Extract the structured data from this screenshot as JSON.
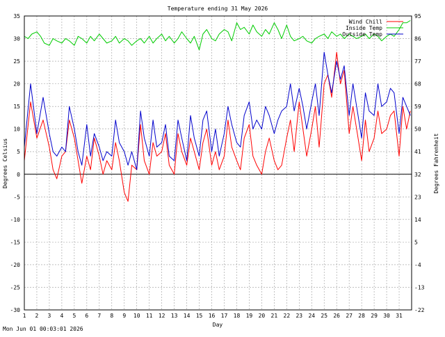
{
  "chart_data": {
    "type": "line",
    "title": "Temperature ending 31 May 2026",
    "xlabel": "Day",
    "ylabel_left": "Degrees Celsius",
    "ylabel_right": "Degrees Fahrenheit",
    "x_range": [
      1,
      32
    ],
    "ylim": [
      -30,
      35
    ],
    "y_ticks": [
      -30,
      -25,
      -20,
      -15,
      -10,
      -5,
      0,
      5,
      10,
      15,
      20,
      25,
      30,
      35
    ],
    "x_ticks": [
      1,
      2,
      3,
      4,
      5,
      6,
      7,
      8,
      9,
      10,
      11,
      12,
      13,
      14,
      15,
      16,
      17,
      18,
      19,
      20,
      21,
      22,
      23,
      24,
      25,
      26,
      27,
      28,
      29,
      30,
      31
    ],
    "y_right_ticks": [
      95,
      86,
      77,
      68,
      59,
      50,
      41,
      32,
      23,
      14,
      5,
      -4,
      -13,
      -22
    ],
    "grid": true,
    "legend_position": "top-right",
    "series": [
      {
        "name": "Wind Chill",
        "color": "#ff0000",
        "x": [
          1.0,
          1.5,
          2.0,
          2.5,
          3.0,
          3.3,
          3.6,
          4.0,
          4.3,
          4.6,
          5.0,
          5.3,
          5.6,
          6.0,
          6.3,
          6.6,
          7.0,
          7.3,
          7.6,
          8.0,
          8.3,
          8.6,
          9.0,
          9.3,
          9.6,
          10.0,
          10.3,
          10.6,
          11.0,
          11.3,
          11.6,
          12.0,
          12.3,
          12.6,
          13.0,
          13.3,
          13.6,
          14.0,
          14.3,
          14.6,
          15.0,
          15.3,
          15.6,
          16.0,
          16.3,
          16.6,
          17.0,
          17.3,
          17.6,
          18.0,
          18.3,
          18.6,
          19.0,
          19.3,
          19.6,
          20.0,
          20.3,
          20.6,
          21.0,
          21.3,
          21.6,
          22.0,
          22.3,
          22.6,
          23.0,
          23.3,
          23.6,
          24.0,
          24.3,
          24.6,
          25.0,
          25.3,
          25.6,
          26.0,
          26.3,
          26.6,
          27.0,
          27.3,
          27.6,
          28.0,
          28.3,
          28.6,
          29.0,
          29.3,
          29.6,
          30.0,
          30.3,
          30.6,
          31.0,
          31.3,
          31.6,
          31.9
        ],
        "values": [
          3,
          16,
          8,
          12,
          6,
          1,
          -1,
          4,
          5,
          12,
          8,
          3,
          -2,
          4,
          1,
          8,
          4,
          0,
          3,
          1,
          7,
          3,
          -4,
          -6,
          2,
          1,
          11,
          3,
          0,
          7,
          4,
          5,
          9,
          2,
          0,
          9,
          5,
          2,
          8,
          5,
          1,
          7,
          10,
          2,
          5,
          1,
          4,
          12,
          6,
          3,
          1,
          8,
          11,
          4,
          2,
          0,
          5,
          8,
          3,
          1,
          2,
          8,
          12,
          5,
          16,
          10,
          4,
          10,
          15,
          6,
          20,
          22,
          17,
          27,
          20,
          23,
          9,
          15,
          10,
          3,
          12,
          5,
          8,
          14,
          9,
          10,
          13,
          14,
          4,
          15,
          10,
          14
        ]
      },
      {
        "name": "Inside Temp",
        "color": "#00cc00",
        "x": [
          1.0,
          1.3,
          1.6,
          2.0,
          2.3,
          2.6,
          3.0,
          3.3,
          3.6,
          4.0,
          4.3,
          4.6,
          5.0,
          5.3,
          5.6,
          6.0,
          6.3,
          6.6,
          7.0,
          7.3,
          7.6,
          8.0,
          8.3,
          8.6,
          9.0,
          9.3,
          9.6,
          10.0,
          10.3,
          10.6,
          11.0,
          11.3,
          11.6,
          12.0,
          12.3,
          12.6,
          13.0,
          13.3,
          13.6,
          14.0,
          14.3,
          14.6,
          15.0,
          15.3,
          15.6,
          16.0,
          16.3,
          16.6,
          17.0,
          17.3,
          17.6,
          18.0,
          18.3,
          18.6,
          19.0,
          19.3,
          19.6,
          20.0,
          20.3,
          20.6,
          21.0,
          21.3,
          21.6,
          22.0,
          22.3,
          22.6,
          23.0,
          23.3,
          23.6,
          24.0,
          24.3,
          24.6,
          25.0,
          25.3,
          25.6,
          26.0,
          26.3,
          26.6,
          27.0,
          27.3,
          27.6,
          28.0,
          28.3,
          28.6,
          29.0,
          29.3,
          29.6,
          30.0,
          30.3,
          30.6,
          31.0,
          31.3,
          31.6,
          31.9
        ],
        "values": [
          30.5,
          30,
          31,
          31.5,
          30.5,
          29,
          28.5,
          30,
          29.5,
          29,
          30,
          29.5,
          28.5,
          30.5,
          30,
          29,
          30.5,
          29.5,
          31,
          30,
          29,
          29.5,
          30.5,
          29,
          30,
          29.5,
          28.5,
          29.5,
          30,
          29,
          30.5,
          29,
          30,
          31,
          29.5,
          30.5,
          29,
          30,
          31.5,
          30,
          29,
          30.5,
          27.5,
          31,
          32,
          30,
          29.5,
          31,
          32,
          31.5,
          29.5,
          33.5,
          32,
          32.5,
          31,
          33,
          31.5,
          30.5,
          32,
          31,
          33.5,
          32,
          30,
          33,
          30.5,
          29.5,
          30,
          30.5,
          29.5,
          29,
          30,
          30.5,
          31,
          30,
          31.5,
          30.5,
          31,
          30,
          31,
          30.5,
          30,
          30.5,
          31,
          30,
          31,
          30.5,
          29.5,
          30.5,
          31,
          30.5,
          32,
          33.5,
          33.5,
          34
        ]
      },
      {
        "name": "Outside Temp",
        "color": "#0000cc",
        "x": [
          1.0,
          1.5,
          2.0,
          2.5,
          3.0,
          3.3,
          3.6,
          4.0,
          4.3,
          4.6,
          5.0,
          5.3,
          5.6,
          6.0,
          6.3,
          6.6,
          7.0,
          7.3,
          7.6,
          8.0,
          8.3,
          8.6,
          9.0,
          9.3,
          9.6,
          10.0,
          10.3,
          10.6,
          11.0,
          11.3,
          11.6,
          12.0,
          12.3,
          12.6,
          13.0,
          13.3,
          13.6,
          14.0,
          14.3,
          14.6,
          15.0,
          15.3,
          15.6,
          16.0,
          16.3,
          16.6,
          17.0,
          17.3,
          17.6,
          18.0,
          18.3,
          18.6,
          19.0,
          19.3,
          19.6,
          20.0,
          20.3,
          20.6,
          21.0,
          21.3,
          21.6,
          22.0,
          22.3,
          22.6,
          23.0,
          23.3,
          23.6,
          24.0,
          24.3,
          24.6,
          25.0,
          25.3,
          25.6,
          26.0,
          26.3,
          26.6,
          27.0,
          27.3,
          27.6,
          28.0,
          28.3,
          28.6,
          29.0,
          29.3,
          29.6,
          30.0,
          30.3,
          30.6,
          31.0,
          31.3,
          31.6,
          31.9
        ],
        "values": [
          6,
          20,
          9,
          17,
          9,
          5,
          4,
          6,
          5,
          15,
          10,
          5,
          2,
          11,
          4,
          9,
          6,
          3,
          5,
          4,
          12,
          7,
          5,
          2,
          5,
          1,
          14,
          8,
          4,
          12,
          6,
          7,
          11,
          4,
          3,
          12,
          8,
          3,
          13,
          8,
          4,
          12,
          14,
          5,
          10,
          4,
          9,
          15,
          11,
          7,
          6,
          13,
          16,
          10,
          12,
          10,
          15,
          13,
          9,
          12,
          14,
          15,
          20,
          14,
          19,
          15,
          10,
          16,
          20,
          13,
          27,
          22,
          18,
          25,
          21,
          24,
          13,
          20,
          15,
          8,
          18,
          14,
          13,
          20,
          15,
          16,
          19,
          18,
          9,
          17,
          15,
          13
        ]
      }
    ]
  },
  "footer": {
    "timestamp": "Mon Jun 01 00:03:01 2026"
  }
}
